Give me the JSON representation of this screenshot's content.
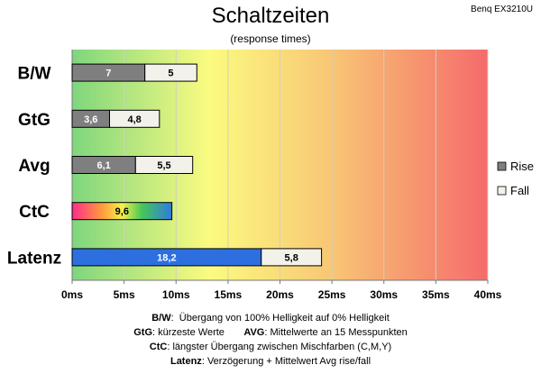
{
  "monitor_model": "Benq EX3210U",
  "colors": {
    "rise": "#7f7f7f",
    "fall": "#f2f2ea",
    "latency_rise": "#2e6fe0",
    "gradient_start": "#7ed67e",
    "gradient_mid": "#fbfb80",
    "gradient_end": "#f56b6b"
  },
  "notes": [
    {
      "key": "B/W",
      "text": "Übergang von 100% Helligkeit auf 0% Helligkeit"
    },
    {
      "key": "GtG",
      "text": "kürzeste Werte",
      "key2": "AVG",
      "text2": "Mittelwerte  an 15 Messpunkten"
    },
    {
      "key": "CtC",
      "text": "längster Übergang zwischen Mischfarben (C,M,Y)"
    },
    {
      "key": "Latenz",
      "text": "Verzögerung  + Mittelwert Avg rise/fall"
    }
  ],
  "chart_data": {
    "type": "bar",
    "orientation": "horizontal",
    "stacked": true,
    "title": "Schaltzeiten",
    "subtitle": "(response times)",
    "xlim": [
      0,
      40
    ],
    "xticks": [
      "0ms",
      "5ms",
      "10ms",
      "15ms",
      "20ms",
      "25ms",
      "30ms",
      "35ms",
      "40ms"
    ],
    "categories": [
      "B/W",
      "GtG",
      "Avg",
      "CtC",
      "Latenz"
    ],
    "series": [
      {
        "name": "Rise",
        "values": [
          7,
          3.6,
          6.1,
          9.6,
          18.2
        ],
        "labels": [
          "7",
          "3,6",
          "6,1",
          "9,6",
          "18,2"
        ]
      },
      {
        "name": "Fall",
        "values": [
          5,
          4.8,
          5.5,
          null,
          5.8
        ],
        "labels": [
          "5",
          "4,8",
          "5,5",
          "",
          "5,8"
        ]
      }
    ],
    "legend_position": "right",
    "grid": true
  }
}
